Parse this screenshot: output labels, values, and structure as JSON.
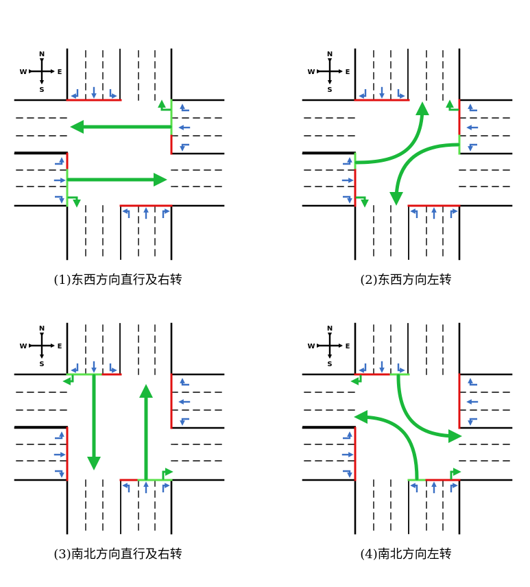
{
  "compass": {
    "n": "N",
    "s": "S",
    "e": "E",
    "w": "W"
  },
  "colors": {
    "road": "#000000",
    "stop_red": "#e01010",
    "stop_green": "#59e04a",
    "flow_arrow": "#1ab83a",
    "lane_arrow": "#3a6fc4"
  },
  "panels": [
    {
      "id": "p1",
      "caption": "(1)东西方向直行及右转",
      "phase": "ew-straight-right"
    },
    {
      "id": "p2",
      "caption": "(2)东西方向左转",
      "phase": "ew-left"
    },
    {
      "id": "p3",
      "caption": "(3)南北方向直行及右转",
      "phase": "ns-straight-right"
    },
    {
      "id": "p4",
      "caption": "(4)南北方向左转",
      "phase": "ns-left"
    }
  ]
}
